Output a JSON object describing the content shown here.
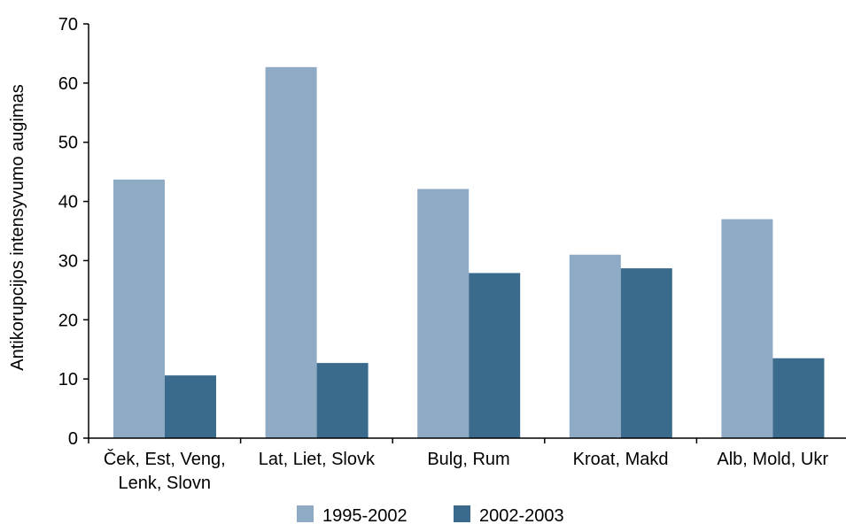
{
  "chart_data": {
    "type": "bar",
    "title": "",
    "xlabel": "",
    "ylabel": "Antikorupcijos intensyvumo augimas",
    "ylim": [
      0,
      70
    ],
    "yticks": [
      0,
      10,
      20,
      30,
      40,
      50,
      60,
      70
    ],
    "categories": [
      [
        "Ček, Est, Veng,",
        "Lenk, Slovn"
      ],
      [
        "Lat, Liet, Slovk"
      ],
      [
        "Bulg, Rum"
      ],
      [
        "Kroat, Makd"
      ],
      [
        "Alb, Mold, Ukr"
      ]
    ],
    "series": [
      {
        "name": "1995-2002",
        "color": "#8faac4",
        "values": [
          43.7,
          62.7,
          42.1,
          31.0,
          37.0
        ]
      },
      {
        "name": "2002-2003",
        "color": "#3b6b8c",
        "values": [
          10.6,
          12.7,
          27.9,
          28.7,
          13.5
        ]
      }
    ],
    "grid": false,
    "legend": "bottom"
  }
}
